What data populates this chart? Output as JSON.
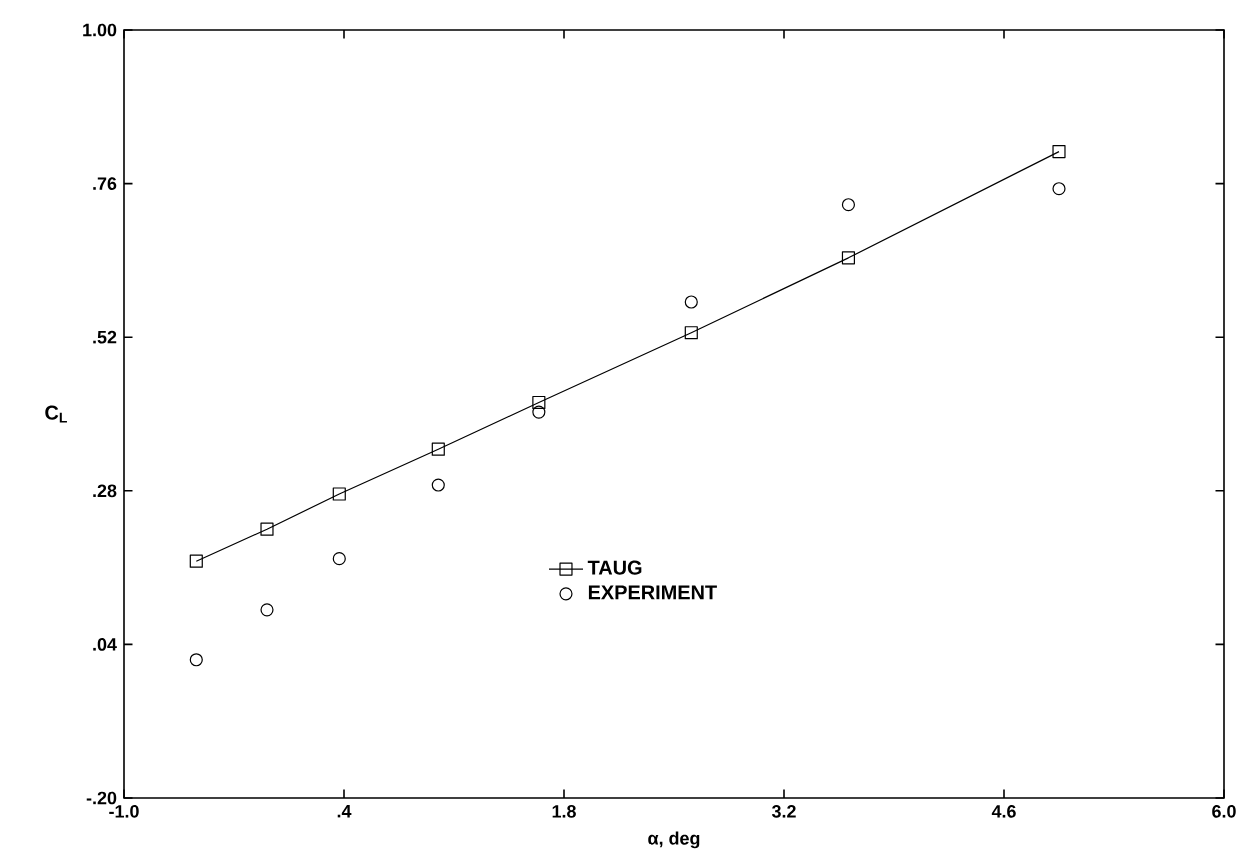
{
  "chart_data": {
    "type": "scatter",
    "xlabel": "α, deg",
    "ylabel": "C$_{L}$",
    "x": [
      -0.54,
      -0.09,
      0.37,
      1.0,
      1.64,
      2.61,
      3.61,
      4.95
    ],
    "series": [
      {
        "name": "TAUG",
        "type": "line",
        "color": "#000000",
        "marker": "square",
        "values": [
          0.17,
          0.22,
          0.275,
          0.345,
          0.418,
          0.527,
          0.644,
          0.81
        ]
      },
      {
        "name": "EXPERIMENT",
        "color": "#000000",
        "marker": "circle",
        "values": [
          0.016,
          0.094,
          0.174,
          0.289,
          0.403,
          0.575,
          0.727,
          0.752
        ]
      }
    ],
    "xlim": [
      -1.0,
      6.0
    ],
    "ylim": [
      -0.2,
      1.0
    ],
    "xticks": [
      {
        "value": -1.0,
        "label": "-1.0"
      },
      {
        "value": 0.4,
        "label": ".4"
      },
      {
        "value": 1.8,
        "label": "1.8"
      },
      {
        "value": 3.2,
        "label": "3.2"
      },
      {
        "value": 4.6,
        "label": "4.6"
      },
      {
        "value": 6.0,
        "label": "6.0"
      }
    ],
    "yticks": [
      {
        "value": -0.2,
        "label": "-.20"
      },
      {
        "value": 0.04,
        "label": ".04"
      },
      {
        "value": 0.28,
        "label": ".28"
      },
      {
        "value": 0.52,
        "label": ".52"
      },
      {
        "value": 0.76,
        "label": ".76"
      },
      {
        "value": 1.0,
        "label": "1.00"
      }
    ],
    "legend": "bottom",
    "grid": false
  }
}
